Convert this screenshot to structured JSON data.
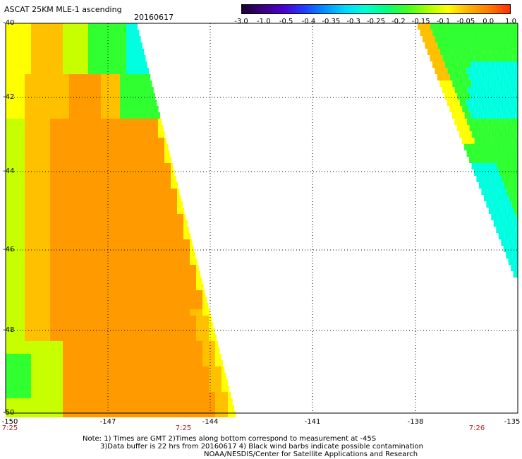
{
  "header": {
    "title": "ASCAT 25KM MLE-1 ascending",
    "date": "20160617"
  },
  "colorbar": {
    "ticks": [
      "-3.0",
      "-1.0",
      "-0.5",
      "-0.4",
      "-0.35",
      "-0.3",
      "-0.25",
      "-0.2",
      "-0.15",
      "-0.1",
      "-0.05",
      "0.0",
      "1.0"
    ],
    "colors": [
      "#1a0033",
      "#3a0080",
      "#4a00d0",
      "#1f3cff",
      "#0090ff",
      "#00d8ff",
      "#00ffd0",
      "#00ff80",
      "#40ff20",
      "#a8ff00",
      "#ffff00",
      "#ffb000",
      "#ff7a00",
      "#ff3000"
    ]
  },
  "axes": {
    "lat_labels": [
      "-40",
      "-42",
      "-44",
      "-46",
      "-48",
      "-50"
    ],
    "lon_labels": [
      "-150",
      "-147",
      "-144",
      "-141",
      "-138",
      "-135"
    ],
    "time_labels": [
      "7:25",
      "7:25",
      "7:26"
    ]
  },
  "notes": {
    "line1": "Note: 1) Times are GMT 2)Times along bottom correspond to measurement at -45S",
    "line2": "3)Data buffer is 22 hrs from 20160617 4) Black wind barbs indicate possible contamination",
    "line3": "NOAA/NESDIS/Center for Satellite Applications and Research"
  },
  "map_colors": {
    "orange": "#ff9a00",
    "yellow_orange": "#ffc000",
    "yellow": "#ffff00",
    "lime": "#c8ff00",
    "green": "#30ff30",
    "cyan": "#00ffe0"
  }
}
